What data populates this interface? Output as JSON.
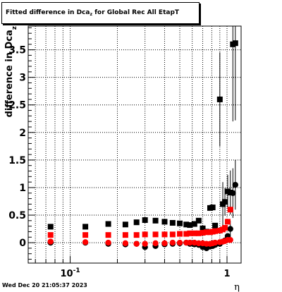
{
  "title": {
    "prefix": "Fitted difference in Dca",
    "subscript": "z",
    "suffix": " for Global Rec All EtapT"
  },
  "footer": "Wed Dec 20 21:05:37 2023",
  "chart_data": {
    "type": "scatter",
    "title": "Fitted difference in Dca_z for Global Rec All EtapT",
    "xlabel": "η",
    "ylabel": "difference in Dca_z",
    "xscale": "log",
    "xlim": [
      0.054,
      1.23
    ],
    "ylim": [
      -0.37,
      3.93
    ],
    "grid": true,
    "x_tick_labels": [
      {
        "value": 0.1,
        "base": "10",
        "exp": "-1"
      },
      {
        "value": 1,
        "base": "1",
        "exp": ""
      }
    ],
    "y_ticks": [
      0,
      0.5,
      1,
      1.5,
      2,
      2.5,
      3,
      3.5
    ],
    "y_tick_labels": [
      "0",
      "0.5",
      "1",
      "1.5",
      "2",
      "2.5",
      "3",
      "3.5"
    ],
    "series": [
      {
        "marker": "square",
        "color": "#000000",
        "points": [
          {
            "x": 0.075,
            "y": 0.29
          },
          {
            "x": 0.125,
            "y": 0.29
          },
          {
            "x": 0.175,
            "y": 0.34
          },
          {
            "x": 0.225,
            "y": 0.33
          },
          {
            "x": 0.265,
            "y": 0.37
          },
          {
            "x": 0.3,
            "y": 0.41
          },
          {
            "x": 0.35,
            "y": 0.4
          },
          {
            "x": 0.4,
            "y": 0.38
          },
          {
            "x": 0.45,
            "y": 0.36
          },
          {
            "x": 0.5,
            "y": 0.35
          },
          {
            "x": 0.55,
            "y": 0.33
          },
          {
            "x": 0.58,
            "y": 0.32
          },
          {
            "x": 0.62,
            "y": 0.34
          },
          {
            "x": 0.66,
            "y": 0.4
          },
          {
            "x": 0.7,
            "y": 0.26
          },
          {
            "x": 0.74,
            "y": 0.2
          },
          {
            "x": 0.78,
            "y": 0.63
          },
          {
            "x": 0.81,
            "y": 0.64
          },
          {
            "x": 0.84,
            "y": 0.31
          },
          {
            "x": 0.9,
            "y": 2.6,
            "err": 0.85
          },
          {
            "x": 0.94,
            "y": 0.7,
            "err": 0.4
          },
          {
            "x": 0.97,
            "y": 0.74,
            "err": 0.25
          },
          {
            "x": 1.01,
            "y": 0.93,
            "err": 0.3
          },
          {
            "x": 1.05,
            "y": 0.91,
            "err": 0.4
          },
          {
            "x": 1.09,
            "y": 3.6,
            "err": 1.4
          },
          {
            "x": 1.13,
            "y": 3.62,
            "err": 1.4
          }
        ]
      },
      {
        "marker": "circle",
        "color": "#000000",
        "points": [
          {
            "x": 0.075,
            "y": 0.0
          },
          {
            "x": 0.125,
            "y": 0.0
          },
          {
            "x": 0.175,
            "y": -0.02
          },
          {
            "x": 0.225,
            "y": -0.03
          },
          {
            "x": 0.265,
            "y": -0.02
          },
          {
            "x": 0.3,
            "y": -0.08
          },
          {
            "x": 0.35,
            "y": -0.06
          },
          {
            "x": 0.4,
            "y": -0.03
          },
          {
            "x": 0.45,
            "y": -0.02
          },
          {
            "x": 0.5,
            "y": -0.01
          },
          {
            "x": 0.55,
            "y": 0.0
          },
          {
            "x": 0.58,
            "y": -0.02
          },
          {
            "x": 0.62,
            "y": -0.03
          },
          {
            "x": 0.66,
            "y": -0.04
          },
          {
            "x": 0.7,
            "y": -0.08
          },
          {
            "x": 0.74,
            "y": -0.1
          },
          {
            "x": 0.78,
            "y": -0.07
          },
          {
            "x": 0.81,
            "y": -0.06
          },
          {
            "x": 0.84,
            "y": -0.04
          },
          {
            "x": 0.9,
            "y": -0.02
          },
          {
            "x": 0.94,
            "y": 0.02
          },
          {
            "x": 0.97,
            "y": 0.04
          },
          {
            "x": 1.01,
            "y": 0.12
          },
          {
            "x": 1.05,
            "y": 0.25,
            "err": 0.15
          },
          {
            "x": 1.09,
            "y": 0.9,
            "err": 0.45
          },
          {
            "x": 1.13,
            "y": 1.05,
            "err": 0.45
          }
        ]
      },
      {
        "marker": "square",
        "color": "#ff0000",
        "points": [
          {
            "x": 0.075,
            "y": 0.14
          },
          {
            "x": 0.125,
            "y": 0.14
          },
          {
            "x": 0.175,
            "y": 0.14
          },
          {
            "x": 0.225,
            "y": 0.14
          },
          {
            "x": 0.265,
            "y": 0.14
          },
          {
            "x": 0.3,
            "y": 0.15
          },
          {
            "x": 0.35,
            "y": 0.15
          },
          {
            "x": 0.4,
            "y": 0.15
          },
          {
            "x": 0.45,
            "y": 0.15
          },
          {
            "x": 0.5,
            "y": 0.16
          },
          {
            "x": 0.55,
            "y": 0.16
          },
          {
            "x": 0.58,
            "y": 0.17
          },
          {
            "x": 0.62,
            "y": 0.17
          },
          {
            "x": 0.66,
            "y": 0.17
          },
          {
            "x": 0.7,
            "y": 0.18
          },
          {
            "x": 0.74,
            "y": 0.19
          },
          {
            "x": 0.78,
            "y": 0.19
          },
          {
            "x": 0.81,
            "y": 0.2
          },
          {
            "x": 0.84,
            "y": 0.21
          },
          {
            "x": 0.9,
            "y": 0.22
          },
          {
            "x": 0.94,
            "y": 0.24
          },
          {
            "x": 0.97,
            "y": 0.27
          },
          {
            "x": 1.01,
            "y": 0.38
          },
          {
            "x": 1.05,
            "y": 0.6
          }
        ]
      },
      {
        "marker": "circle",
        "color": "#ff0000",
        "points": [
          {
            "x": 0.075,
            "y": 0.02
          },
          {
            "x": 0.125,
            "y": 0.01
          },
          {
            "x": 0.175,
            "y": 0.0
          },
          {
            "x": 0.225,
            "y": -0.01
          },
          {
            "x": 0.265,
            "y": -0.02
          },
          {
            "x": 0.3,
            "y": -0.02
          },
          {
            "x": 0.35,
            "y": -0.01
          },
          {
            "x": 0.4,
            "y": -0.01
          },
          {
            "x": 0.45,
            "y": 0.0
          },
          {
            "x": 0.5,
            "y": 0.0
          },
          {
            "x": 0.55,
            "y": 0.0
          },
          {
            "x": 0.58,
            "y": 0.0
          },
          {
            "x": 0.62,
            "y": 0.0
          },
          {
            "x": 0.66,
            "y": -0.01
          },
          {
            "x": 0.7,
            "y": -0.01
          },
          {
            "x": 0.74,
            "y": -0.02
          },
          {
            "x": 0.78,
            "y": -0.02
          },
          {
            "x": 0.81,
            "y": -0.01
          },
          {
            "x": 0.84,
            "y": 0.0
          },
          {
            "x": 0.9,
            "y": 0.01
          },
          {
            "x": 0.94,
            "y": 0.02
          },
          {
            "x": 0.97,
            "y": 0.03
          },
          {
            "x": 1.01,
            "y": 0.05
          },
          {
            "x": 1.05,
            "y": 0.05
          }
        ]
      }
    ]
  }
}
